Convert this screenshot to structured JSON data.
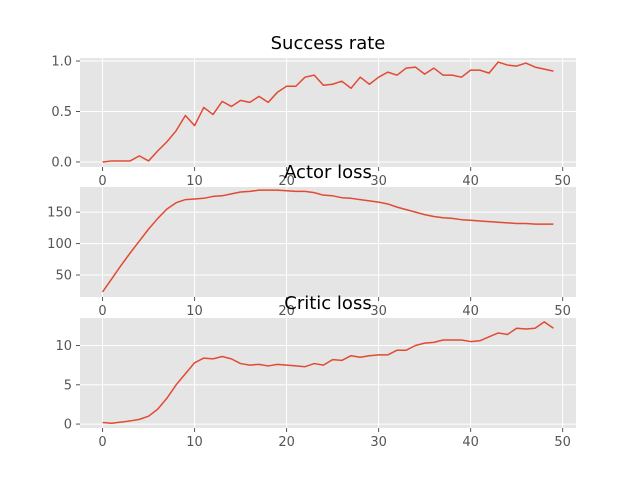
{
  "chart_data": [
    {
      "type": "line",
      "title": "Success rate",
      "xlabel": "",
      "ylabel": "",
      "xlim": [
        -2.45,
        51.45
      ],
      "ylim": [
        -0.05,
        1.03
      ],
      "xticks": [
        0,
        10,
        20,
        30,
        40,
        50
      ],
      "yticks": [
        0.0,
        0.5,
        1.0
      ],
      "ytick_labels": [
        "0.0",
        "0.5",
        "1.0"
      ],
      "grid": true,
      "colors": {
        "line": "#E24A33",
        "background": "#E5E5E5"
      },
      "series": [
        {
          "x": [
            0,
            1,
            2,
            3,
            4,
            5,
            6,
            7,
            8,
            9,
            10,
            11,
            12,
            13,
            14,
            15,
            16,
            17,
            18,
            19,
            20,
            21,
            22,
            23,
            24,
            25,
            26,
            27,
            28,
            29,
            30,
            31,
            32,
            33,
            34,
            35,
            36,
            37,
            38,
            39,
            40,
            41,
            42,
            43,
            44,
            45,
            46,
            47,
            48,
            49
          ],
          "values": [
            0.0,
            0.01,
            0.01,
            0.01,
            0.06,
            0.01,
            0.11,
            0.2,
            0.31,
            0.46,
            0.36,
            0.54,
            0.47,
            0.6,
            0.55,
            0.61,
            0.59,
            0.65,
            0.59,
            0.69,
            0.75,
            0.75,
            0.84,
            0.86,
            0.76,
            0.77,
            0.8,
            0.73,
            0.84,
            0.77,
            0.84,
            0.89,
            0.86,
            0.93,
            0.94,
            0.87,
            0.93,
            0.86,
            0.86,
            0.84,
            0.91,
            0.91,
            0.88,
            0.99,
            0.96,
            0.95,
            0.98,
            0.94,
            0.92,
            0.9
          ]
        }
      ]
    },
    {
      "type": "line",
      "title": "Actor loss",
      "xlabel": "",
      "ylabel": "",
      "xlim": [
        -2.45,
        51.45
      ],
      "ylim": [
        15,
        190
      ],
      "xticks": [
        0,
        10,
        20,
        30,
        40,
        50
      ],
      "yticks": [
        50,
        100,
        150
      ],
      "ytick_labels": [
        "50",
        "100",
        "150"
      ],
      "grid": true,
      "colors": {
        "line": "#E24A33",
        "background": "#E5E5E5"
      },
      "series": [
        {
          "x": [
            0,
            1,
            2,
            3,
            4,
            5,
            6,
            7,
            8,
            9,
            10,
            11,
            12,
            13,
            14,
            15,
            16,
            17,
            18,
            19,
            20,
            21,
            22,
            23,
            24,
            25,
            26,
            27,
            28,
            29,
            30,
            31,
            32,
            33,
            34,
            35,
            36,
            37,
            38,
            39,
            40,
            41,
            42,
            43,
            44,
            45,
            46,
            47,
            48,
            49
          ],
          "values": [
            23,
            44,
            65,
            85,
            104,
            123,
            140,
            155,
            165,
            170,
            171,
            172,
            175,
            176,
            179,
            182,
            183,
            185,
            185,
            185,
            184,
            183,
            183,
            181,
            177,
            176,
            173,
            172,
            170,
            168,
            166,
            163,
            158,
            154,
            150,
            146,
            143,
            141,
            140,
            138,
            137,
            136,
            135,
            134,
            133,
            132,
            132,
            131,
            131,
            131
          ]
        }
      ]
    },
    {
      "type": "line",
      "title": "Critic loss",
      "xlabel": "",
      "ylabel": "",
      "xlim": [
        -2.45,
        51.45
      ],
      "ylim": [
        -0.5,
        13.5
      ],
      "xticks": [
        0,
        10,
        20,
        30,
        40,
        50
      ],
      "yticks": [
        0,
        5,
        10
      ],
      "ytick_labels": [
        "0",
        "5",
        "10"
      ],
      "grid": true,
      "colors": {
        "line": "#E24A33",
        "background": "#E5E5E5"
      },
      "series": [
        {
          "x": [
            0,
            1,
            2,
            3,
            4,
            5,
            6,
            7,
            8,
            9,
            10,
            11,
            12,
            13,
            14,
            15,
            16,
            17,
            18,
            19,
            20,
            21,
            22,
            23,
            24,
            25,
            26,
            27,
            28,
            29,
            30,
            31,
            32,
            33,
            34,
            35,
            36,
            37,
            38,
            39,
            40,
            41,
            42,
            43,
            44,
            45,
            46,
            47,
            48,
            49
          ],
          "values": [
            0.2,
            0.1,
            0.25,
            0.4,
            0.6,
            1.0,
            1.9,
            3.3,
            5.0,
            6.4,
            7.8,
            8.4,
            8.3,
            8.6,
            8.3,
            7.7,
            7.5,
            7.6,
            7.4,
            7.6,
            7.5,
            7.4,
            7.3,
            7.7,
            7.5,
            8.2,
            8.1,
            8.7,
            8.5,
            8.7,
            8.8,
            8.8,
            9.4,
            9.4,
            10.0,
            10.3,
            10.4,
            10.7,
            10.7,
            10.7,
            10.5,
            10.6,
            11.1,
            11.6,
            11.4,
            12.2,
            12.1,
            12.2,
            13.0,
            12.2
          ]
        }
      ]
    }
  ]
}
